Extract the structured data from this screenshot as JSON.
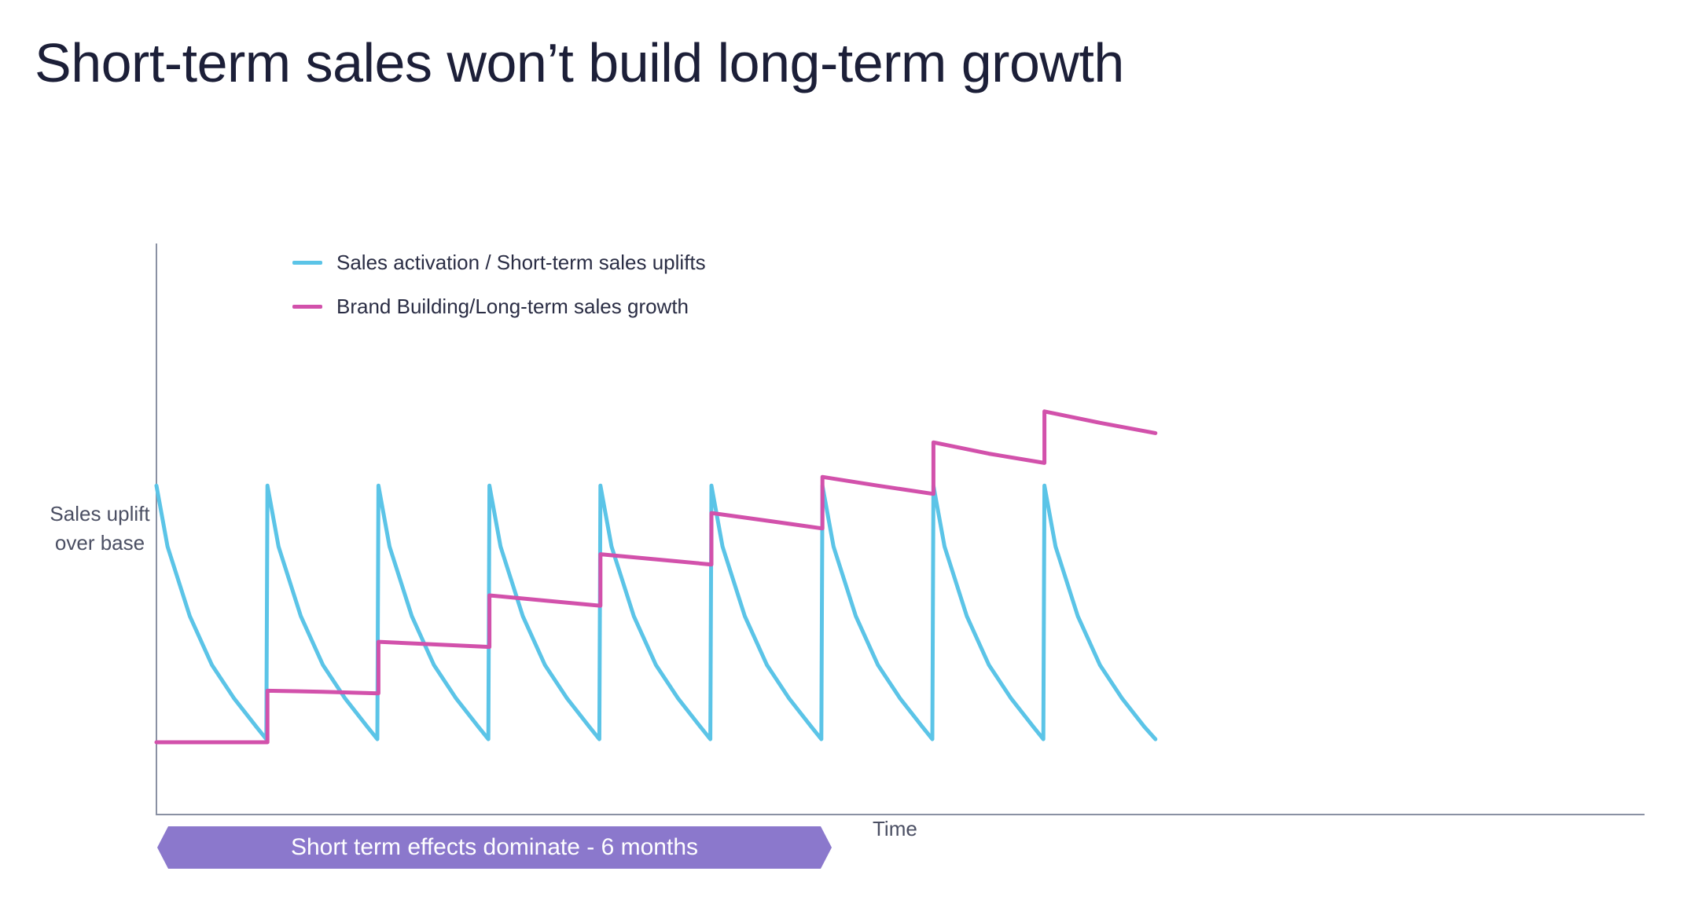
{
  "title": "Short-term sales won’t build long-term growth",
  "chart_data": {
    "type": "line",
    "title": "Short-term sales won’t build long-term growth",
    "xlabel": "Time",
    "ylabel": "Sales uplift over base",
    "x_ticks": [],
    "y_ticks": [],
    "grid": false,
    "legend_position": "top-left",
    "x_range": [
      0,
      13.4
    ],
    "y_range": [
      0,
      6.9
    ],
    "series": [
      {
        "name": "Sales activation / Short-term sales uplifts",
        "color": "#5bc4e7",
        "x": [
          0,
          0.1,
          0.3,
          0.5,
          0.7,
          0.9,
          0.99,
          1,
          1.1,
          1.3,
          1.5,
          1.7,
          1.9,
          1.99,
          2,
          2.1,
          2.3,
          2.5,
          2.7,
          2.9,
          2.99,
          3,
          3.1,
          3.3,
          3.5,
          3.7,
          3.9,
          3.99,
          4,
          4.1,
          4.3,
          4.5,
          4.7,
          4.9,
          4.99,
          5,
          5.1,
          5.3,
          5.5,
          5.7,
          5.9,
          5.99,
          6,
          6.1,
          6.3,
          6.5,
          6.7,
          6.9,
          6.99,
          7,
          7.1,
          7.3,
          7.5,
          7.7,
          7.9,
          7.99,
          8,
          8.1,
          8.3,
          8.5,
          8.7,
          8.9,
          9
        ],
        "y": [
          4.98,
          3.8,
          2.45,
          1.5,
          0.85,
          0.3,
          0.06,
          4.98,
          3.8,
          2.45,
          1.5,
          0.85,
          0.3,
          0.06,
          4.98,
          3.8,
          2.45,
          1.5,
          0.85,
          0.3,
          0.06,
          4.98,
          3.8,
          2.45,
          1.5,
          0.85,
          0.3,
          0.06,
          4.98,
          3.8,
          2.45,
          1.5,
          0.85,
          0.3,
          0.06,
          4.98,
          3.8,
          2.45,
          1.5,
          0.85,
          0.3,
          0.06,
          4.98,
          3.8,
          2.45,
          1.5,
          0.85,
          0.3,
          0.06,
          4.98,
          3.8,
          2.45,
          1.5,
          0.85,
          0.3,
          0.06,
          4.98,
          3.8,
          2.45,
          1.5,
          0.85,
          0.3,
          0.06
        ]
      },
      {
        "name": "Brand Building/Long-term sales growth",
        "color": "#d251ab",
        "x": [
          0,
          1,
          1,
          1.5,
          2,
          2,
          2.5,
          3,
          3,
          3.5,
          4,
          4,
          4.5,
          5,
          5,
          5.5,
          6,
          6,
          6.5,
          7,
          7,
          7.5,
          8,
          8,
          8.5,
          9
        ],
        "y": [
          0,
          0,
          1.0,
          0.98,
          0.95,
          1.95,
          1.9,
          1.85,
          2.85,
          2.75,
          2.65,
          3.65,
          3.55,
          3.45,
          4.45,
          4.3,
          4.15,
          5.15,
          4.98,
          4.82,
          5.82,
          5.6,
          5.42,
          6.42,
          6.2,
          6.0
        ]
      }
    ],
    "annotations": [
      "Short term effects dominate - 6 months"
    ]
  }
}
